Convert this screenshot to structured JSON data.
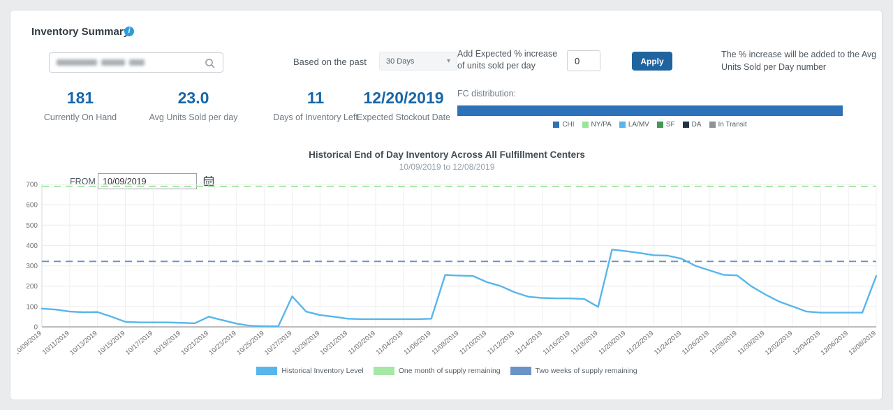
{
  "header": {
    "title": "Inventory Summary"
  },
  "controls": {
    "search": {
      "redacted": true,
      "value": ""
    },
    "period_label": "Based on the past",
    "period_value": "30 Days",
    "increase_label_line1": "Add Expected % increase",
    "increase_label_line2": "of units sold per day",
    "increase_value": "0",
    "apply_label": "Apply",
    "help_line1": "The % increase will be added to the Avg",
    "help_line2": "Units Sold per Day number"
  },
  "stats": [
    {
      "value": "181",
      "label": "Currently On Hand"
    },
    {
      "value": "23.0",
      "label": "Avg Units Sold per day"
    },
    {
      "value": "11",
      "label": "Days of Inventory Left"
    },
    {
      "value": "12/20/2019",
      "label": "Expected Stockout Date"
    }
  ],
  "fc_distribution": {
    "label": "FC distribution:",
    "bar_fill_pct": 100,
    "bar_color": "#2d72b8",
    "legend": [
      {
        "label": "CHI",
        "color": "#2d72b8"
      },
      {
        "label": "NY/PA",
        "color": "#98e698"
      },
      {
        "label": "LA/MV",
        "color": "#57b6eb"
      },
      {
        "label": "SF",
        "color": "#41985a"
      },
      {
        "label": "DA",
        "color": "#243447"
      },
      {
        "label": "In Transit",
        "color": "#8d9399"
      }
    ]
  },
  "chart": {
    "from_label": "FROM",
    "from_value": "10/09/2019"
  },
  "chart_data": {
    "type": "line",
    "title": "Historical End of Day Inventory Across All Fulfillment Centers",
    "subtitle": "10/09/2019 to 12/08/2019",
    "x": [
      "10/09/2019",
      "10/10/2019",
      "10/11/2019",
      "10/12/2019",
      "10/13/2019",
      "10/14/2019",
      "10/15/2019",
      "10/16/2019",
      "10/17/2019",
      "10/18/2019",
      "10/19/2019",
      "10/20/2019",
      "10/21/2019",
      "10/22/2019",
      "10/23/2019",
      "10/24/2019",
      "10/25/2019",
      "10/26/2019",
      "10/27/2019",
      "10/28/2019",
      "10/29/2019",
      "10/30/2019",
      "10/31/2019",
      "11/01/2019",
      "11/02/2019",
      "11/03/2019",
      "11/04/2019",
      "11/05/2019",
      "11/06/2019",
      "11/07/2019",
      "11/08/2019",
      "11/09/2019",
      "11/10/2019",
      "11/11/2019",
      "11/12/2019",
      "11/13/2019",
      "11/14/2019",
      "11/15/2019",
      "11/16/2019",
      "11/17/2019",
      "11/18/2019",
      "11/19/2019",
      "11/20/2019",
      "11/21/2019",
      "11/22/2019",
      "11/23/2019",
      "11/24/2019",
      "11/25/2019",
      "11/26/2019",
      "11/27/2019",
      "11/28/2019",
      "11/29/2019",
      "11/30/2019",
      "12/01/2019",
      "12/02/2019",
      "12/03/2019",
      "12/04/2019",
      "12/05/2019",
      "12/06/2019",
      "12/07/2019",
      "12/08/2019"
    ],
    "series": [
      {
        "name": "Historical Inventory Level",
        "color": "#57b6eb",
        "values": [
          90,
          85,
          75,
          72,
          73,
          50,
          25,
          22,
          22,
          22,
          20,
          18,
          50,
          33,
          16,
          5,
          3,
          3,
          150,
          75,
          58,
          50,
          40,
          38,
          38,
          38,
          38,
          38,
          40,
          255,
          252,
          250,
          220,
          200,
          170,
          148,
          142,
          140,
          140,
          137,
          98,
          380,
          372,
          363,
          352,
          350,
          335,
          300,
          278,
          256,
          253,
          200,
          160,
          125,
          100,
          75,
          70,
          70,
          70,
          70,
          250
        ]
      }
    ],
    "reference_lines": [
      {
        "name": "One month of supply remaining",
        "value": 690,
        "color": "#a5e8a5",
        "style": "dashed"
      },
      {
        "name": "Two weeks of supply remaining",
        "value": 322,
        "color": "#6a93c8",
        "style": "dashed"
      }
    ],
    "ylim": [
      0,
      700
    ],
    "y_ticks": [
      0,
      100,
      200,
      300,
      400,
      500,
      600,
      700
    ],
    "x_tick_every": 2,
    "grid": true,
    "legend_position": "bottom"
  }
}
